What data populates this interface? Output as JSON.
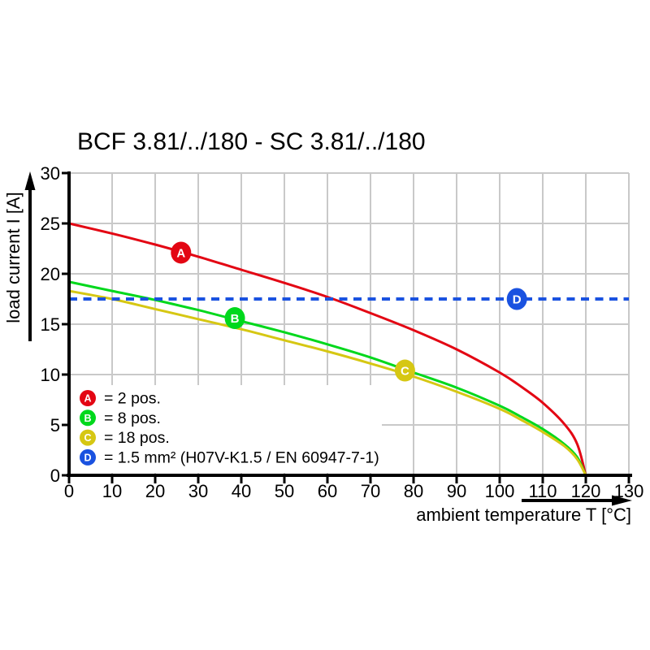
{
  "title": "BCF 3.81/../180 - SC 3.81/../180",
  "chart_data": {
    "type": "line",
    "title": "BCF 3.81/../180 - SC 3.81/../180",
    "xlabel": "ambient temperature T [°C]",
    "ylabel": "load current I [A]",
    "xlim": [
      0,
      130
    ],
    "ylim": [
      0,
      30
    ],
    "xticks": [
      0,
      10,
      20,
      30,
      40,
      50,
      60,
      70,
      80,
      90,
      100,
      110,
      120,
      130
    ],
    "yticks": [
      0,
      5,
      10,
      15,
      20,
      25,
      30
    ],
    "grid": true,
    "legend_position": "lower-left-inside",
    "colors": {
      "grid": "#c9c9c9",
      "axis": "#000000",
      "marker_text": "#ffffff",
      "background": "#ffffff"
    },
    "series": [
      {
        "id": "A",
        "label": "= 2 pos.",
        "color": "#e30613",
        "style": "solid",
        "marker": {
          "x": 26,
          "y": 22.1
        },
        "points": [
          [
            0,
            25
          ],
          [
            10,
            24.0
          ],
          [
            20,
            22.9
          ],
          [
            30,
            21.7
          ],
          [
            40,
            20.4
          ],
          [
            50,
            19.1
          ],
          [
            60,
            17.7
          ],
          [
            70,
            16.1
          ],
          [
            80,
            14.4
          ],
          [
            90,
            12.5
          ],
          [
            100,
            10.2
          ],
          [
            105,
            8.8
          ],
          [
            110,
            7.2
          ],
          [
            115,
            5.1
          ],
          [
            118,
            3.1
          ],
          [
            120,
            0
          ]
        ]
      },
      {
        "id": "B",
        "label": "= 8 pos.",
        "color": "#00d81c",
        "style": "solid",
        "marker": {
          "x": 38.5,
          "y": 15.6
        },
        "points": [
          [
            0,
            19.2
          ],
          [
            10,
            18.3
          ],
          [
            20,
            17.4
          ],
          [
            30,
            16.4
          ],
          [
            40,
            15.3
          ],
          [
            50,
            14.2
          ],
          [
            60,
            13.0
          ],
          [
            70,
            11.7
          ],
          [
            80,
            10.2
          ],
          [
            90,
            8.7
          ],
          [
            100,
            6.9
          ],
          [
            105,
            5.8
          ],
          [
            110,
            4.6
          ],
          [
            115,
            3.1
          ],
          [
            118,
            1.8
          ],
          [
            120,
            0
          ]
        ]
      },
      {
        "id": "C",
        "label": "= 18 pos.",
        "color": "#d6c713",
        "style": "solid",
        "marker": {
          "x": 78,
          "y": 10.4
        },
        "points": [
          [
            0,
            18.3
          ],
          [
            10,
            17.5
          ],
          [
            20,
            16.5
          ],
          [
            30,
            15.5
          ],
          [
            40,
            14.5
          ],
          [
            50,
            13.4
          ],
          [
            60,
            12.3
          ],
          [
            70,
            11.1
          ],
          [
            80,
            9.8
          ],
          [
            90,
            8.3
          ],
          [
            100,
            6.6
          ],
          [
            105,
            5.5
          ],
          [
            110,
            4.3
          ],
          [
            115,
            2.9
          ],
          [
            118,
            1.6
          ],
          [
            120,
            0
          ]
        ]
      },
      {
        "id": "D",
        "label": "= 1.5 mm² (H07V-K1.5 / EN 60947-7-1)",
        "color": "#1a52e0",
        "style": "dashed",
        "constant_value": 17.5,
        "marker": {
          "x": 104,
          "y": 17.5
        },
        "points": [
          [
            0,
            17.5
          ],
          [
            130,
            17.5
          ]
        ]
      }
    ]
  }
}
